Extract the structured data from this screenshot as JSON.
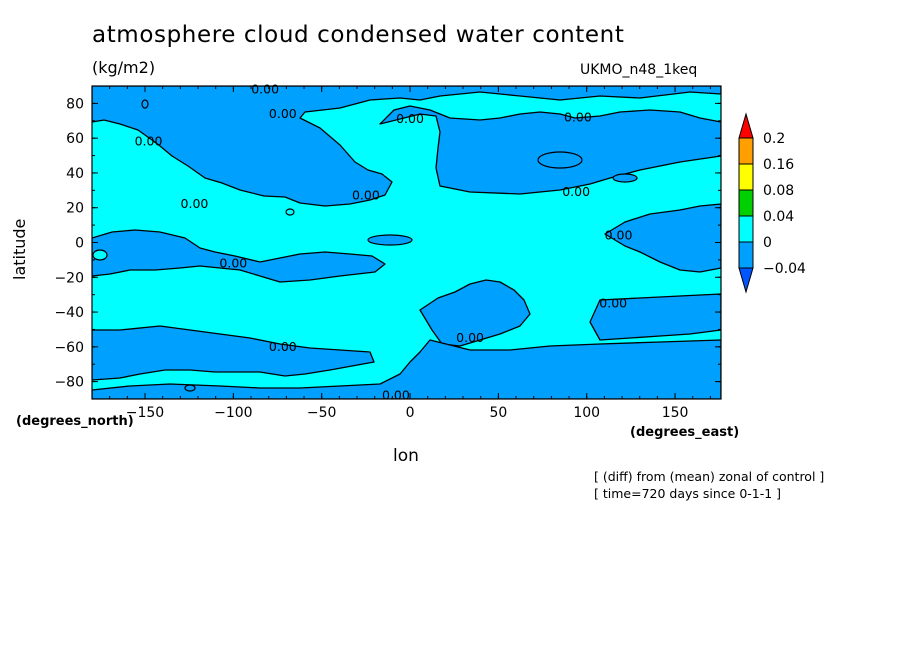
{
  "chart_data": {
    "type": "heatmap",
    "title": "atmosphere cloud condensed water content",
    "units": "(kg/m2)",
    "model": "UKMO_n48_1keq",
    "xlabel": "lon",
    "ylabel": "latitude",
    "x_units": "(degrees_east)",
    "y_units": "(degrees_north)",
    "xlim": [
      -180,
      176
    ],
    "ylim": [
      -90,
      90
    ],
    "x_ticks": [
      -150,
      -100,
      -50,
      0,
      50,
      100,
      150
    ],
    "y_ticks": [
      80,
      60,
      40,
      20,
      0,
      -20,
      -40,
      -60,
      -80
    ],
    "colorbar": {
      "levels": [
        -0.04,
        0,
        0.04,
        0.08,
        0.16,
        0.2
      ],
      "labels": [
        "0.2",
        "0.16",
        "0.08",
        "0.04",
        "0",
        "-0.04"
      ],
      "colors": [
        "#0055ff",
        "#00a0ff",
        "#00ffff",
        "#00d000",
        "#ffff00",
        "#ffa000",
        "#ff0000"
      ]
    },
    "contour_label": "0.00",
    "contour_label_positions": [
      {
        "lon": -82,
        "lat": 88
      },
      {
        "lon": -72,
        "lat": 74
      },
      {
        "lon": 0,
        "lat": 71
      },
      {
        "lon": 95,
        "lat": 72
      },
      {
        "lon": -148,
        "lat": 58
      },
      {
        "lon": -122,
        "lat": 22
      },
      {
        "lon": -25,
        "lat": 27
      },
      {
        "lon": 94,
        "lat": 29
      },
      {
        "lon": 118,
        "lat": 4
      },
      {
        "lon": -100,
        "lat": -12
      },
      {
        "lon": 115,
        "lat": -35
      },
      {
        "lon": -72,
        "lat": -60
      },
      {
        "lon": 34,
        "lat": -55
      },
      {
        "lon": -8,
        "lat": -88
      }
    ],
    "notes": [
      "[ (diff) from (mean) zonal of control ]",
      "[ time=720 days since 0-1-1 ]"
    ]
  }
}
